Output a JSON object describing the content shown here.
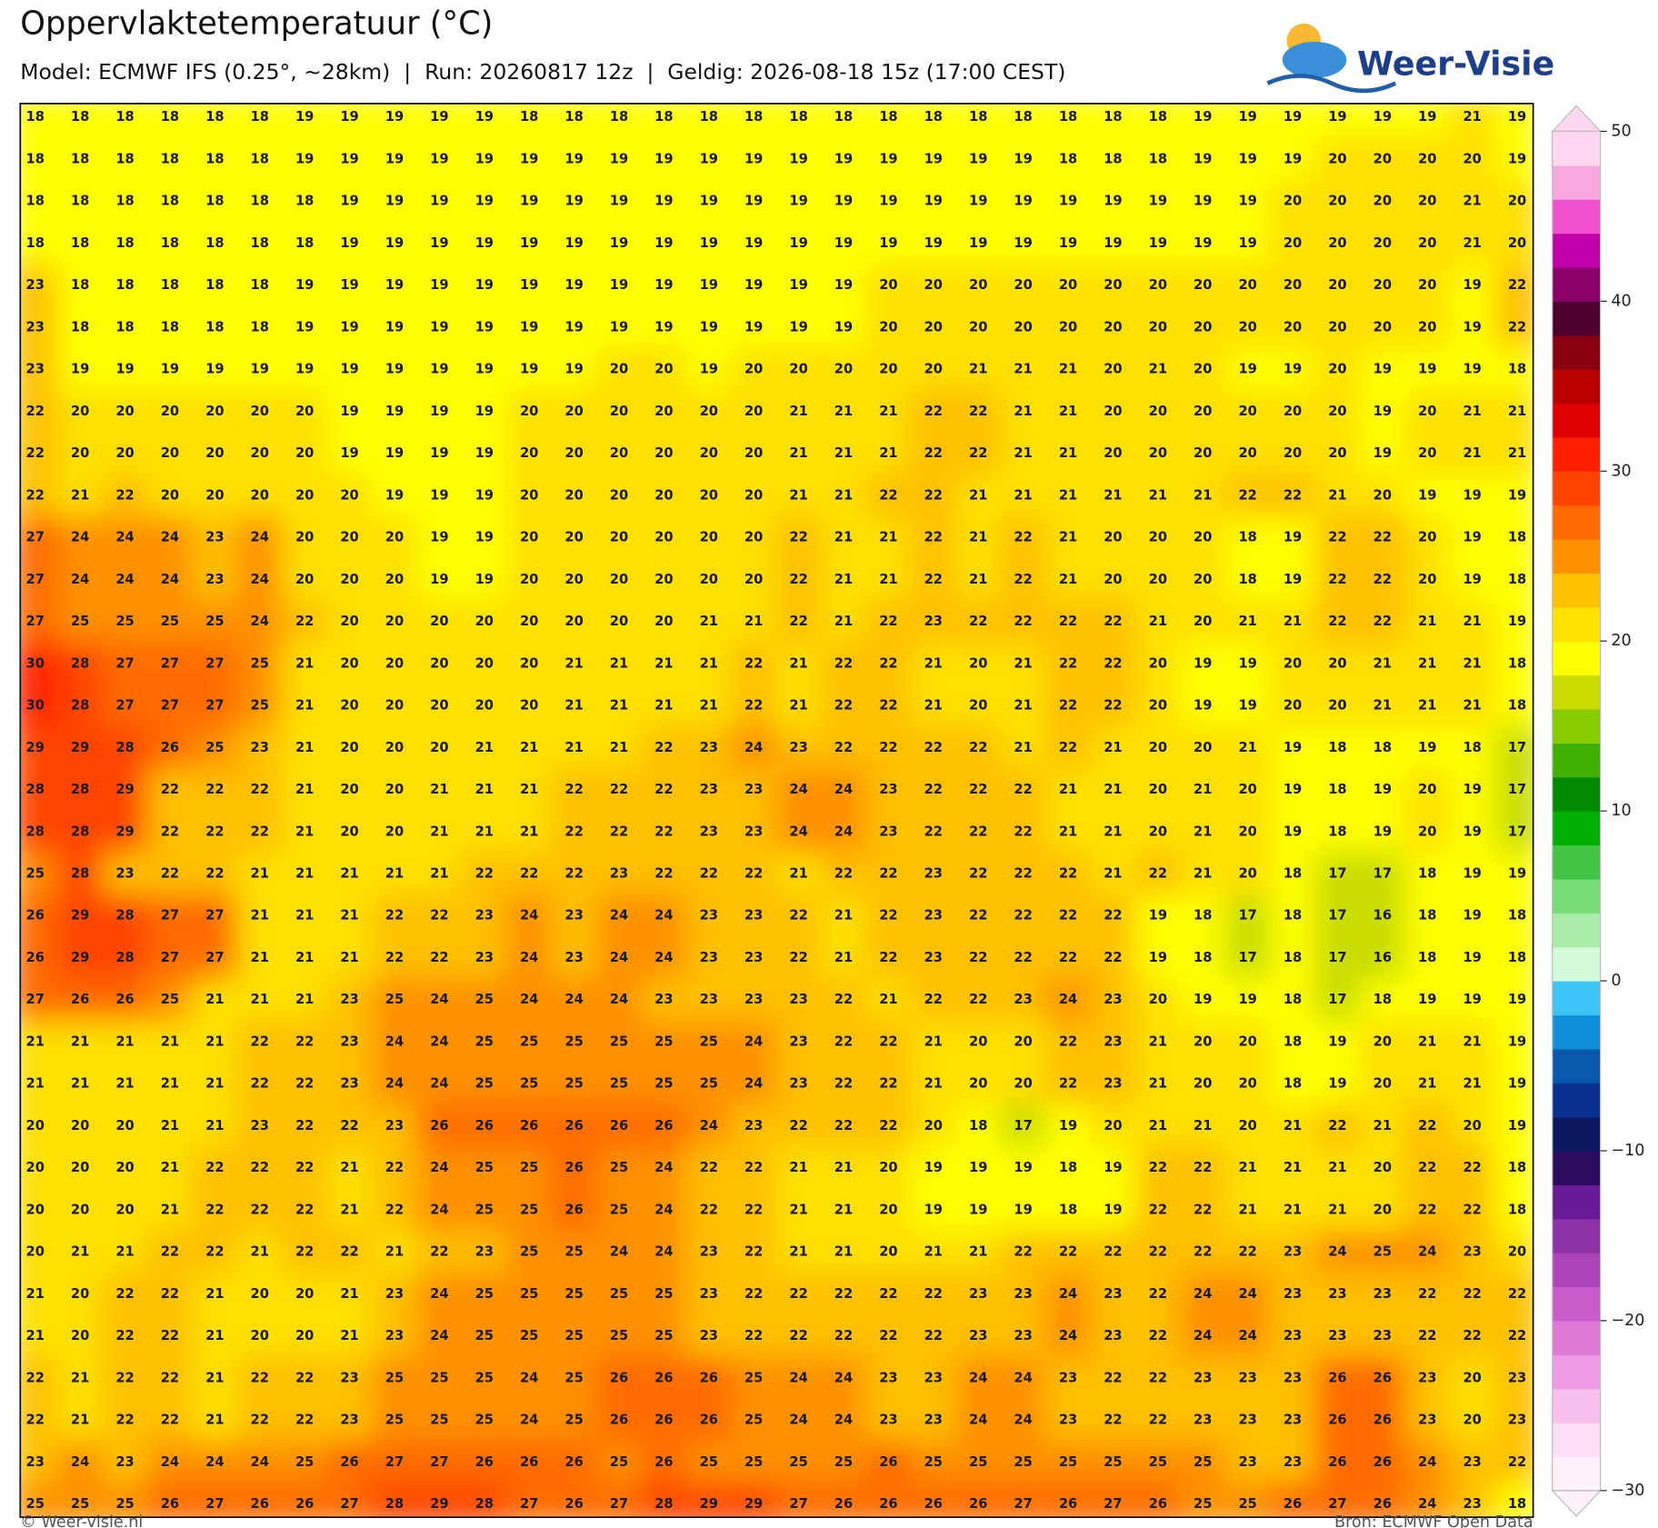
{
  "header": {
    "title": "Oppervlaktetemperatuur (°C)",
    "subtitle": "Model: ECMWF IFS (0.25°, ~28km)  |  Run: 20260817 12z  |  Geldig: 2026-08-18 15z (17:00 CEST)"
  },
  "logo": {
    "text": "Weer-Visie"
  },
  "map": {
    "values": [
      [
        18,
        18,
        18,
        18,
        18,
        18,
        19,
        19,
        19,
        19,
        19,
        18,
        18,
        18,
        18,
        18,
        18,
        18,
        18,
        18,
        18,
        18,
        18,
        18,
        18,
        18,
        19,
        19,
        19,
        19,
        19,
        19,
        21,
        19
      ],
      [
        18,
        18,
        18,
        18,
        18,
        18,
        19,
        19,
        19,
        19,
        19,
        19,
        19,
        19,
        19,
        19,
        19,
        19,
        19,
        19,
        19,
        19,
        19,
        18,
        18,
        18,
        19,
        19,
        19,
        20,
        20,
        20,
        20,
        19
      ],
      [
        18,
        18,
        18,
        18,
        18,
        18,
        18,
        19,
        19,
        19,
        19,
        19,
        19,
        19,
        19,
        19,
        19,
        19,
        19,
        19,
        19,
        19,
        19,
        19,
        19,
        19,
        19,
        19,
        20,
        20,
        20,
        20,
        21,
        20
      ],
      [
        18,
        18,
        18,
        18,
        18,
        18,
        18,
        19,
        19,
        19,
        19,
        19,
        19,
        19,
        19,
        19,
        19,
        19,
        19,
        19,
        19,
        19,
        19,
        19,
        19,
        19,
        19,
        19,
        20,
        20,
        20,
        20,
        21,
        20
      ],
      [
        23,
        18,
        18,
        18,
        18,
        18,
        19,
        19,
        19,
        19,
        19,
        19,
        19,
        19,
        19,
        19,
        19,
        19,
        19,
        20,
        20,
        20,
        20,
        20,
        20,
        20,
        20,
        20,
        20,
        20,
        20,
        20,
        19,
        22
      ],
      [
        23,
        18,
        18,
        18,
        18,
        18,
        19,
        19,
        19,
        19,
        19,
        19,
        19,
        19,
        19,
        19,
        19,
        19,
        19,
        20,
        20,
        20,
        20,
        20,
        20,
        20,
        20,
        20,
        20,
        20,
        20,
        20,
        19,
        22
      ],
      [
        23,
        19,
        19,
        19,
        19,
        19,
        19,
        19,
        19,
        19,
        19,
        19,
        19,
        20,
        20,
        19,
        20,
        20,
        20,
        20,
        20,
        21,
        21,
        21,
        20,
        21,
        20,
        19,
        19,
        20,
        19,
        19,
        19,
        18
      ],
      [
        22,
        20,
        20,
        20,
        20,
        20,
        20,
        19,
        19,
        19,
        19,
        20,
        20,
        20,
        20,
        20,
        20,
        21,
        21,
        21,
        22,
        22,
        21,
        21,
        20,
        20,
        20,
        20,
        20,
        20,
        19,
        20,
        21,
        21
      ],
      [
        22,
        20,
        20,
        20,
        20,
        20,
        20,
        19,
        19,
        19,
        19,
        20,
        20,
        20,
        20,
        20,
        20,
        21,
        21,
        21,
        22,
        22,
        21,
        21,
        20,
        20,
        20,
        20,
        20,
        20,
        19,
        20,
        21,
        21
      ],
      [
        22,
        21,
        22,
        20,
        20,
        20,
        20,
        20,
        19,
        19,
        19,
        20,
        20,
        20,
        20,
        20,
        20,
        21,
        21,
        22,
        22,
        21,
        21,
        21,
        21,
        21,
        21,
        22,
        22,
        21,
        20,
        19,
        19,
        19
      ],
      [
        27,
        24,
        24,
        24,
        23,
        24,
        20,
        20,
        20,
        19,
        19,
        20,
        20,
        20,
        20,
        20,
        20,
        22,
        21,
        21,
        22,
        21,
        22,
        21,
        20,
        20,
        20,
        18,
        19,
        22,
        22,
        20,
        19,
        18
      ],
      [
        27,
        24,
        24,
        24,
        23,
        24,
        20,
        20,
        20,
        19,
        19,
        20,
        20,
        20,
        20,
        20,
        20,
        22,
        21,
        21,
        22,
        21,
        22,
        21,
        20,
        20,
        20,
        18,
        19,
        22,
        22,
        20,
        19,
        18
      ],
      [
        27,
        25,
        25,
        25,
        25,
        24,
        22,
        20,
        20,
        20,
        20,
        20,
        20,
        20,
        20,
        21,
        21,
        22,
        21,
        22,
        23,
        22,
        22,
        22,
        22,
        21,
        20,
        21,
        21,
        22,
        22,
        21,
        21,
        19
      ],
      [
        30,
        28,
        27,
        27,
        27,
        25,
        21,
        20,
        20,
        20,
        20,
        20,
        21,
        21,
        21,
        21,
        22,
        21,
        22,
        22,
        21,
        20,
        21,
        22,
        22,
        20,
        19,
        19,
        20,
        20,
        21,
        21,
        21,
        18
      ],
      [
        30,
        28,
        27,
        27,
        27,
        25,
        21,
        20,
        20,
        20,
        20,
        20,
        21,
        21,
        21,
        21,
        22,
        21,
        22,
        22,
        21,
        20,
        21,
        22,
        22,
        20,
        19,
        19,
        20,
        20,
        21,
        21,
        21,
        18
      ],
      [
        29,
        29,
        28,
        26,
        25,
        23,
        21,
        20,
        20,
        20,
        21,
        21,
        21,
        21,
        22,
        23,
        24,
        23,
        22,
        22,
        22,
        22,
        21,
        22,
        21,
        20,
        20,
        21,
        19,
        18,
        18,
        19,
        18,
        17
      ],
      [
        28,
        28,
        29,
        22,
        22,
        22,
        21,
        20,
        20,
        21,
        21,
        21,
        22,
        22,
        22,
        23,
        23,
        24,
        24,
        23,
        22,
        22,
        22,
        21,
        21,
        20,
        21,
        20,
        19,
        18,
        19,
        20,
        19,
        17
      ],
      [
        28,
        28,
        29,
        22,
        22,
        22,
        21,
        20,
        20,
        21,
        21,
        21,
        22,
        22,
        22,
        23,
        23,
        24,
        24,
        23,
        22,
        22,
        22,
        21,
        21,
        20,
        21,
        20,
        19,
        18,
        19,
        20,
        19,
        17
      ],
      [
        25,
        28,
        23,
        22,
        22,
        21,
        21,
        21,
        21,
        21,
        22,
        22,
        22,
        23,
        22,
        22,
        22,
        21,
        22,
        22,
        23,
        22,
        22,
        22,
        21,
        22,
        21,
        20,
        18,
        17,
        17,
        18,
        19,
        19
      ],
      [
        26,
        29,
        28,
        27,
        27,
        21,
        21,
        21,
        22,
        22,
        23,
        24,
        23,
        24,
        24,
        23,
        23,
        22,
        21,
        22,
        23,
        22,
        22,
        22,
        22,
        19,
        18,
        17,
        18,
        17,
        16,
        18,
        19,
        18
      ],
      [
        26,
        29,
        28,
        27,
        27,
        21,
        21,
        21,
        22,
        22,
        23,
        24,
        23,
        24,
        24,
        23,
        23,
        22,
        21,
        22,
        23,
        22,
        22,
        22,
        22,
        19,
        18,
        17,
        18,
        17,
        16,
        18,
        19,
        18
      ],
      [
        27,
        26,
        26,
        25,
        21,
        21,
        21,
        23,
        25,
        24,
        25,
        24,
        24,
        24,
        23,
        23,
        23,
        23,
        22,
        21,
        22,
        22,
        23,
        24,
        23,
        20,
        19,
        19,
        18,
        17,
        18,
        19,
        19,
        19
      ],
      [
        21,
        21,
        21,
        21,
        21,
        22,
        22,
        23,
        24,
        24,
        25,
        25,
        25,
        25,
        25,
        25,
        24,
        23,
        22,
        22,
        21,
        20,
        20,
        22,
        23,
        21,
        20,
        20,
        18,
        19,
        20,
        21,
        21,
        19
      ],
      [
        21,
        21,
        21,
        21,
        21,
        22,
        22,
        23,
        24,
        24,
        25,
        25,
        25,
        25,
        25,
        25,
        24,
        23,
        22,
        22,
        21,
        20,
        20,
        22,
        23,
        21,
        20,
        20,
        18,
        19,
        20,
        21,
        21,
        19
      ],
      [
        20,
        20,
        20,
        21,
        21,
        23,
        22,
        22,
        23,
        26,
        26,
        26,
        26,
        26,
        26,
        24,
        23,
        22,
        22,
        22,
        20,
        18,
        17,
        19,
        20,
        21,
        21,
        20,
        21,
        22,
        21,
        22,
        20,
        19
      ],
      [
        20,
        20,
        20,
        21,
        22,
        22,
        22,
        21,
        22,
        24,
        25,
        25,
        26,
        25,
        24,
        22,
        22,
        21,
        21,
        20,
        19,
        19,
        19,
        18,
        19,
        22,
        22,
        21,
        21,
        21,
        20,
        22,
        22,
        18
      ],
      [
        20,
        20,
        20,
        21,
        22,
        22,
        22,
        21,
        22,
        24,
        25,
        25,
        26,
        25,
        24,
        22,
        22,
        21,
        21,
        20,
        19,
        19,
        19,
        18,
        19,
        22,
        22,
        21,
        21,
        21,
        20,
        22,
        22,
        18
      ],
      [
        20,
        21,
        21,
        22,
        22,
        21,
        22,
        22,
        21,
        22,
        23,
        25,
        25,
        24,
        24,
        23,
        22,
        21,
        21,
        20,
        21,
        21,
        22,
        22,
        22,
        22,
        22,
        22,
        23,
        24,
        25,
        24,
        23,
        20
      ],
      [
        21,
        20,
        22,
        22,
        21,
        20,
        20,
        21,
        23,
        24,
        25,
        25,
        25,
        25,
        25,
        23,
        22,
        22,
        22,
        22,
        22,
        23,
        23,
        24,
        23,
        22,
        24,
        24,
        23,
        23,
        23,
        22,
        22,
        22
      ],
      [
        21,
        20,
        22,
        22,
        21,
        20,
        20,
        21,
        23,
        24,
        25,
        25,
        25,
        25,
        25,
        23,
        22,
        22,
        22,
        22,
        22,
        23,
        23,
        24,
        23,
        22,
        24,
        24,
        23,
        23,
        23,
        22,
        22,
        22
      ],
      [
        22,
        21,
        22,
        22,
        21,
        22,
        22,
        23,
        25,
        25,
        25,
        24,
        25,
        26,
        26,
        26,
        25,
        24,
        24,
        23,
        23,
        24,
        24,
        23,
        22,
        22,
        23,
        23,
        23,
        26,
        26,
        23,
        20,
        23
      ],
      [
        22,
        21,
        22,
        22,
        21,
        22,
        22,
        23,
        25,
        25,
        25,
        24,
        25,
        26,
        26,
        26,
        25,
        24,
        24,
        23,
        23,
        24,
        24,
        23,
        22,
        22,
        23,
        23,
        23,
        26,
        26,
        23,
        20,
        23
      ],
      [
        23,
        24,
        23,
        24,
        24,
        24,
        25,
        26,
        27,
        27,
        26,
        26,
        26,
        25,
        26,
        25,
        25,
        25,
        25,
        26,
        25,
        25,
        25,
        25,
        25,
        25,
        25,
        23,
        23,
        26,
        26,
        24,
        23,
        22
      ],
      [
        25,
        25,
        25,
        26,
        27,
        26,
        26,
        27,
        28,
        29,
        28,
        27,
        26,
        27,
        28,
        29,
        29,
        27,
        26,
        26,
        26,
        26,
        27,
        26,
        27,
        26,
        25,
        25,
        26,
        27,
        26,
        24,
        23,
        18
      ]
    ]
  },
  "colorbar": {
    "lim": [
      -30,
      50
    ],
    "colors": [
      "#fff2fc",
      "#fde0f7",
      "#f9c0ef",
      "#f09ae6",
      "#e07ad8",
      "#c85ccb",
      "#ad44b8",
      "#8e30a6",
      "#6a1a96",
      "#2c0a60",
      "#0a1860",
      "#083090",
      "#0858b0",
      "#1090d8",
      "#3cc4f4",
      "#d4fadc",
      "#a8eca8",
      "#78dc78",
      "#44c444",
      "#00b000",
      "#008c00",
      "#40b000",
      "#88cc00",
      "#c8dc00",
      "#ffff00",
      "#ffe000",
      "#ffc000",
      "#ff9000",
      "#ff6a00",
      "#ff4400",
      "#ff2000",
      "#e00000",
      "#b80000",
      "#880010",
      "#500030",
      "#880068",
      "#c000a8",
      "#f050d0",
      "#f8a8de",
      "#fdd8f0"
    ],
    "ticks": [
      50,
      40,
      30,
      20,
      10,
      0,
      {
        "value": -10,
        "label": "−10"
      },
      {
        "value": -20,
        "label": "−20"
      },
      {
        "value": -30,
        "label": "−30"
      }
    ]
  },
  "footer": {
    "left": "© Weer-visie.nl",
    "right": "Bron: ECMWF Open Data"
  }
}
